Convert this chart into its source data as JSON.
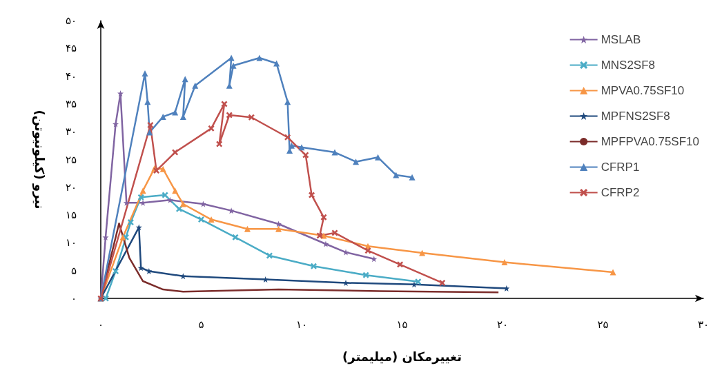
{
  "chart_data": {
    "type": "line",
    "xlabel": "تغییرمکان (میلیمتر)",
    "ylabel": "نیرو (کیلونیوتن)",
    "xlim": [
      0,
      30
    ],
    "xticks": [
      {
        "value": 0,
        "label": "۰"
      },
      {
        "value": 5,
        "label": "۵"
      },
      {
        "value": 10,
        "label": "۱۰"
      },
      {
        "value": 15,
        "label": "۱۵"
      },
      {
        "value": 20,
        "label": "۲۰"
      },
      {
        "value": 25,
        "label": "۲۵"
      },
      {
        "value": 30,
        "label": "۳۰"
      }
    ],
    "ylim": [
      0,
      50
    ],
    "yticks": [
      {
        "value": 0,
        "label": "۰"
      },
      {
        "value": 5,
        "label": "۵"
      },
      {
        "value": 10,
        "label": "۱۰"
      },
      {
        "value": 15,
        "label": "۱۵"
      },
      {
        "value": 20,
        "label": "۲۰"
      },
      {
        "value": 25,
        "label": "۲۵"
      },
      {
        "value": 30,
        "label": "۳۰"
      },
      {
        "value": 35,
        "label": "۳۵"
      },
      {
        "value": 40,
        "label": "۴۰"
      },
      {
        "value": 45,
        "label": "۴۵"
      },
      {
        "value": 50,
        "label": "۵۰"
      }
    ],
    "grid": false,
    "legend": "top right",
    "series": [
      {
        "name": "MSLAB",
        "color": "#8064a2",
        "marker": "star",
        "x": [
          0,
          0.24,
          0.74,
          0.98,
          1.28,
          2.1,
          3.45,
          5.1,
          6.5,
          8.85,
          11.2,
          12.2,
          13.6
        ],
        "values": [
          0,
          11,
          31.4,
          36.9,
          17.2,
          17.2,
          17.7,
          17,
          15.8,
          13.4,
          9.8,
          8.3,
          7.1
        ]
      },
      {
        "name": "MNS2SF8",
        "color": "#4bacc6",
        "marker": "cross",
        "x": [
          0.25,
          0.74,
          1.25,
          1.49,
          2,
          3.2,
          3.9,
          5,
          6.7,
          8.4,
          10.6,
          13.2,
          15.8
        ],
        "values": [
          0,
          4.9,
          11,
          13.7,
          18.2,
          18.6,
          16.1,
          14.2,
          11,
          7.7,
          5.8,
          4.2,
          3
        ]
      },
      {
        "name": "MPVA0.75SF10",
        "color": "#f79646",
        "marker": "triangle",
        "x": [
          0,
          1.1,
          2.1,
          2.67,
          3.1,
          3.7,
          4.1,
          5.5,
          7.3,
          8.85,
          11.1,
          13.3,
          16,
          20.1,
          25.5
        ],
        "values": [
          0,
          11,
          19.4,
          23.4,
          23.3,
          19.4,
          17,
          14.2,
          12.5,
          12.5,
          11.3,
          9.4,
          8.2,
          6.5,
          4.7
        ]
      },
      {
        "name": "MPFNS2SF8",
        "color": "#1f497d",
        "marker": "star",
        "x": [
          0,
          1.9,
          2,
          2.4,
          4.1,
          8.2,
          12.2,
          15.6,
          20.2
        ],
        "values": [
          0,
          12.8,
          5.5,
          4.9,
          4,
          3.4,
          2.8,
          2.5,
          1.8
        ]
      },
      {
        "name": "MPFPVA0.75SF10",
        "color": "#7b2c2a",
        "marker": "none",
        "x": [
          0,
          0.91,
          1.42,
          2.1,
          3.1,
          4.1,
          8.85,
          13.9,
          19.8
        ],
        "values": [
          0,
          13.5,
          7.3,
          3.1,
          1.6,
          1.2,
          1.6,
          1.3,
          1.1
        ]
      },
      {
        "name": "CFRP1",
        "color": "#4f81bd",
        "marker": "triangle",
        "x": [
          0,
          2.2,
          2.33,
          2.43,
          3.1,
          3.7,
          4.2,
          4.1,
          4.7,
          6.5,
          6.4,
          6.6,
          7.9,
          8.75,
          9.3,
          9.4,
          9.5,
          10,
          11.65,
          12.7,
          13.8,
          14.7,
          15.5
        ],
        "values": [
          0,
          40.5,
          35.4,
          29.9,
          32.7,
          33.5,
          39.5,
          32.7,
          38.3,
          43.3,
          38.3,
          41.9,
          43.3,
          42.3,
          35.4,
          26.6,
          27.5,
          27.2,
          26.3,
          24.6,
          25.4,
          22.2,
          21.8
        ]
      },
      {
        "name": "CFRP2",
        "color": "#c0504d",
        "marker": "cross",
        "x": [
          0,
          2.47,
          2.77,
          3.7,
          5.5,
          6.15,
          5.9,
          6.4,
          7.5,
          9.3,
          10.2,
          10.5,
          11.1,
          10.9,
          11.65,
          13.3,
          14.9,
          17
        ],
        "values": [
          0,
          31.2,
          23,
          26.3,
          30.6,
          35,
          27.8,
          33,
          32.6,
          29,
          25.8,
          18.6,
          14.6,
          11.3,
          11.8,
          8.6,
          6.1,
          2.8
        ]
      }
    ]
  }
}
